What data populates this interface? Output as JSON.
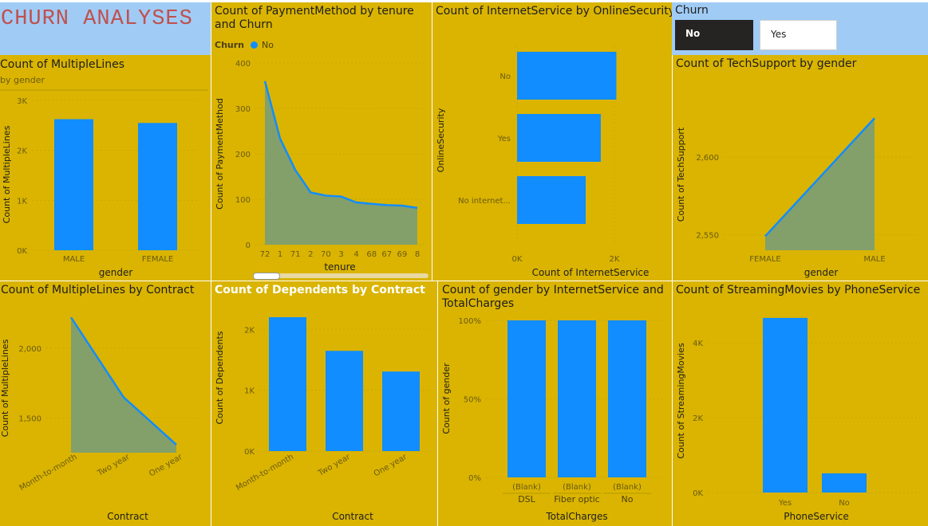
{
  "header": {
    "title": "CHURN ANALYSES"
  },
  "slicer": {
    "title": "Churn",
    "options": [
      "No",
      "Yes"
    ],
    "selected": "No"
  },
  "colors": {
    "tile_bg": "#dab400",
    "bar": "#118dff",
    "area_fill": "#83a06a",
    "header_bg": "#a0cbf5",
    "title_red": "#c0504d"
  },
  "tiles": {
    "multiplelines_gender": {
      "title": "Count of MultipleLines",
      "subtitle": "by gender"
    },
    "payment_tenure": {
      "title_line1": "Count of PaymentMethod by tenure",
      "title_line2": "and Churn",
      "legend_title": "Churn",
      "legend_item": "No"
    },
    "internet_security": {
      "title": "Count of InternetService by OnlineSecurity"
    },
    "techsupport_gender": {
      "title": "Count of TechSupport by gender"
    },
    "multiplelines_contract": {
      "title": "Count of MultipleLines by Contract"
    },
    "dependents_contract": {
      "title": "Count of Dependents by Contract"
    },
    "gender_internet_total": {
      "title_line1": "Count of gender by InternetService and",
      "title_line2": "TotalCharges"
    },
    "streaming_phone": {
      "title": "Count of StreamingMovies by PhoneService"
    }
  },
  "chart_data": [
    {
      "id": "multiplelines_gender",
      "type": "bar",
      "categories": [
        "MALE",
        "FEMALE"
      ],
      "values": [
        2625,
        2549
      ],
      "xlabel": "gender",
      "ylabel": "Count of MultipleLines",
      "ylim": [
        0,
        3000
      ],
      "yticks": [
        "0K",
        "1K",
        "2K",
        "3K"
      ]
    },
    {
      "id": "payment_tenure",
      "type": "area",
      "categories": [
        "72",
        "1",
        "71",
        "2",
        "70",
        "3",
        "4",
        "68",
        "67",
        "69",
        "8"
      ],
      "values": [
        360,
        233,
        164,
        115,
        108,
        106,
        93,
        90,
        87,
        86,
        81
      ],
      "series": [
        {
          "name": "No",
          "values": [
            360,
            233,
            164,
            115,
            108,
            106,
            93,
            90,
            87,
            86,
            81
          ]
        }
      ],
      "xlabel": "tenure",
      "ylabel": "Count of PaymentMethod",
      "ylim": [
        0,
        400
      ],
      "yticks": [
        "0",
        "100",
        "200",
        "300",
        "400"
      ]
    },
    {
      "id": "internet_security",
      "type": "bar",
      "orientation": "horizontal",
      "categories": [
        "No",
        "Yes",
        "No internet..."
      ],
      "values": [
        2040,
        1720,
        1410
      ],
      "xlabel": "Count of InternetService",
      "ylabel": "OnlineSecurity",
      "xlim": [
        0,
        2000
      ],
      "xticks": [
        "0K",
        "2K"
      ]
    },
    {
      "id": "techsupport_gender",
      "type": "area",
      "categories": [
        "FEMALE",
        "MALE"
      ],
      "values": [
        2549,
        2625
      ],
      "xlabel": "gender",
      "ylabel": "Count of TechSupport",
      "ylim": [
        2540,
        2640
      ],
      "yticks": [
        "2,550",
        "2,600"
      ]
    },
    {
      "id": "multiplelines_contract",
      "type": "area",
      "categories": [
        "Month-to-month",
        "Two year",
        "One year"
      ],
      "values": [
        2220,
        1647,
        1307
      ],
      "xlabel": "Contract",
      "ylabel": "Count of MultipleLines",
      "ylim": [
        1250,
        2250
      ],
      "yticks": [
        "1,500",
        "2,000"
      ]
    },
    {
      "id": "dependents_contract",
      "type": "bar",
      "categories": [
        "Month-to-month",
        "Two year",
        "One year"
      ],
      "values": [
        2220,
        1647,
        1307
      ],
      "xlabel": "Contract",
      "ylabel": "Count of Dependents",
      "ylim": [
        0,
        2200
      ],
      "yticks": [
        "0K",
        "1K",
        "2K"
      ]
    },
    {
      "id": "gender_internet_total",
      "type": "bar",
      "stacked": "100%",
      "categories": [
        "(Blank) DSL",
        "(Blank) Fiber optic",
        "(Blank) No"
      ],
      "category_lines": [
        [
          "(Blank)",
          "DSL"
        ],
        [
          "(Blank)",
          "Fiber optic"
        ],
        [
          "(Blank)",
          "No"
        ]
      ],
      "values": [
        100,
        100,
        100
      ],
      "xlabel": "TotalCharges",
      "ylabel": "Count of gender",
      "ylim": [
        0,
        100
      ],
      "yticks": [
        "0%",
        "50%",
        "100%"
      ]
    },
    {
      "id": "streaming_phone",
      "type": "bar",
      "categories": [
        "Yes",
        "No"
      ],
      "values": [
        4662,
        512
      ],
      "xlabel": "PhoneService",
      "ylabel": "Count of StreamingMovies",
      "ylim": [
        0,
        5000
      ],
      "yticks": [
        "0K",
        "2K",
        "4K"
      ]
    }
  ]
}
